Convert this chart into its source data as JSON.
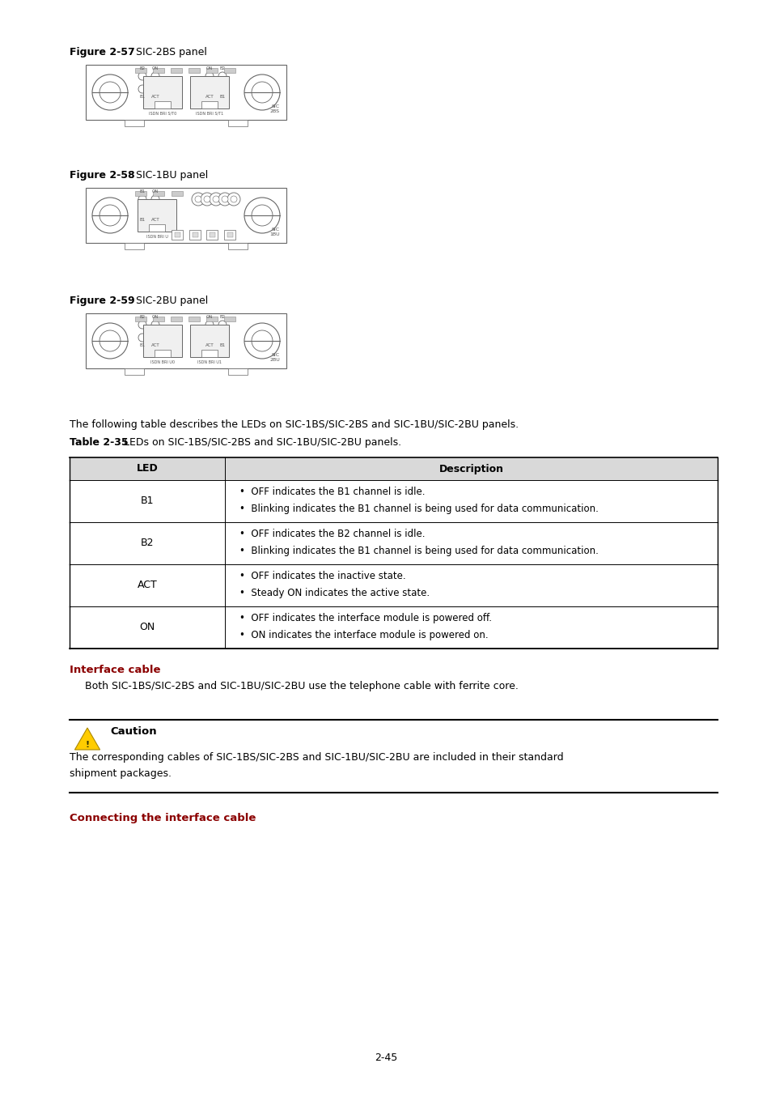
{
  "page_bg": "#ffffff",
  "fig_57_label": "Figure 2-57",
  "fig_57_text": " SIC-2BS panel",
  "fig_58_label": "Figure 2-58",
  "fig_58_text": " SIC-1BU panel",
  "fig_59_label": "Figure 2-59",
  "fig_59_text": " SIC-2BU panel",
  "intro_text": "The following table describes the LEDs on SIC-1BS/SIC-2BS and SIC-1BU/SIC-2BU panels.",
  "table_label": "Table 2-35",
  "table_label_suffix": " LEDs on SIC-1BS/SIC-2BS and SIC-1BU/SIC-2BU panels.",
  "table_header_led": "LED",
  "table_header_desc": "Description",
  "table_header_bg": "#d9d9d9",
  "table_rows": [
    {
      "led": "B1",
      "desc": [
        "OFF indicates the B1 channel is idle.",
        "Blinking indicates the B1 channel is being used for data communication."
      ]
    },
    {
      "led": "B2",
      "desc": [
        "OFF indicates the B2 channel is idle.",
        "Blinking indicates the B1 channel is being used for data communication."
      ]
    },
    {
      "led": "ACT",
      "desc": [
        "OFF indicates the inactive state.",
        "Steady ON indicates the active state."
      ]
    },
    {
      "led": "ON",
      "desc": [
        "OFF indicates the interface module is powered off.",
        "ON indicates the interface module is powered on."
      ]
    }
  ],
  "section_interface_cable": "Interface cable",
  "section_interface_cable_color": "#8b0000",
  "interface_cable_text": "Both SIC-1BS/SIC-2BS and SIC-1BU/SIC-2BU use the telephone cable with ferrite core.",
  "caution_title": "Caution",
  "caution_text_line1": "The corresponding cables of SIC-1BS/SIC-2BS and SIC-1BU/SIC-2BU are included in their standard",
  "caution_text_line2": "shipment packages.",
  "section_connecting": "Connecting the interface cable",
  "section_connecting_color": "#8b0000",
  "page_number": "2-45"
}
